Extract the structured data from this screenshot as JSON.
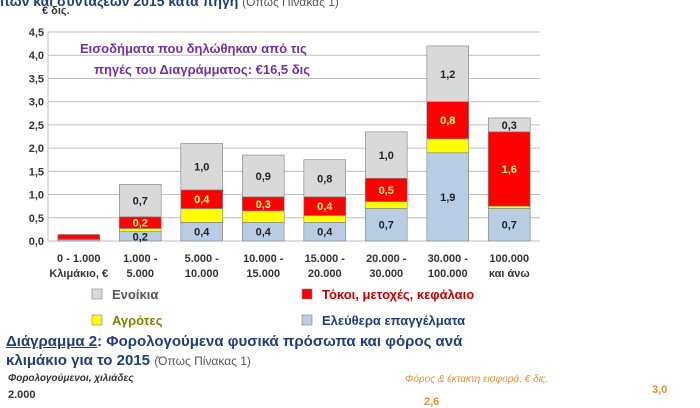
{
  "header": {
    "title_bold": "ιτών και συνταξεων 2015 κατά πηγή",
    "title_paren": "(Όπως Πίνακας 1)"
  },
  "chart_data": {
    "type": "bar",
    "stacked": true,
    "unit_label": "€ δις.",
    "annotation_line1": "Εισοδήματα που δηλώθηκαν από τις",
    "annotation_line2": "πηγές του Διαγράμματος: €16,5 δις",
    "ylim": [
      0,
      4.5
    ],
    "yticks": [
      "0,0",
      "0,5",
      "1,0",
      "1,5",
      "2,0",
      "2,5",
      "3,0",
      "3,5",
      "4,0",
      "4,5"
    ],
    "categories": [
      [
        "0 - 1.000",
        "Κλιμάκιο, €"
      ],
      [
        "1.000 -",
        "5.000"
      ],
      [
        "5.000 -",
        "10.000"
      ],
      [
        "10.000 -",
        "15.000"
      ],
      [
        "15.000 -",
        "20.000"
      ],
      [
        "20.000 -",
        "30.000"
      ],
      [
        "30.000 -",
        "100.000"
      ],
      [
        "100.000",
        "και άνω"
      ]
    ],
    "series": [
      {
        "name": "Ελεύθερα επαγγέλματα",
        "color": "#b8cce4",
        "values": [
          0.03,
          0.2,
          0.4,
          0.4,
          0.4,
          0.7,
          1.9,
          0.7
        ],
        "labels": [
          "",
          "0,2",
          "0,4",
          "0,4",
          "0,4",
          "0,7",
          "1,9",
          "0,7"
        ]
      },
      {
        "name": "Αγρότες",
        "color": "#ffff00",
        "values": [
          0.01,
          0.07,
          0.3,
          0.25,
          0.15,
          0.15,
          0.3,
          0.05
        ],
        "labels": [
          "",
          "",
          "",
          "",
          "",
          "",
          "",
          ""
        ]
      },
      {
        "name": "Τόκοι, μετοχές, κεφάλαιο",
        "color": "#ff0000",
        "values": [
          0.1,
          0.25,
          0.4,
          0.3,
          0.4,
          0.5,
          0.8,
          1.6
        ],
        "labels": [
          "",
          "0,2",
          "0,4",
          "0,3",
          "0,4",
          "0,5",
          "0,8",
          "1,6"
        ]
      },
      {
        "name": "Ενοίκια",
        "color": "#d9d9d9",
        "values": [
          0.0,
          0.7,
          1.0,
          0.9,
          0.8,
          1.0,
          1.2,
          0.3
        ],
        "labels": [
          "",
          "0,7",
          "1,0",
          "0,9",
          "0,8",
          "1,0",
          "1,2",
          "0,3"
        ]
      }
    ],
    "legend": [
      {
        "name": "Ενοίκια",
        "color": "#d9d9d9",
        "text_color": "#555555"
      },
      {
        "name": "Τόκοι, μετοχές, κεφάλαιο",
        "color": "#ff0000",
        "text_color": "#c00000"
      },
      {
        "name": "Αγρότες",
        "color": "#ffff00",
        "text_color": "#7f7f00"
      },
      {
        "name": "Ελεύθερα επαγγέλματα",
        "color": "#b8cce4",
        "text_color": "#1f3d7a"
      }
    ]
  },
  "diagram2": {
    "title_under": "Διάγραμμα 2",
    "title_rest": ": Φορολογούμενα φυσικά πρόσωπα  και φόρος ανά",
    "subtitle": "κλιμάκιο για το 2015",
    "subtitle_paren": "(Όπως Πίνακας 1)",
    "left_label": "Φορολογούμενοι, χιλιάδες",
    "right_label": "Φόρος & έκτακτη εισφορά,  € δις.",
    "left_top_tick": "2.000",
    "right_top_tick": "3,0",
    "peak_label": "2,6"
  }
}
